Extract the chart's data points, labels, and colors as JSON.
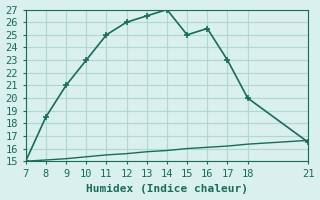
{
  "upper_x": [
    7,
    8,
    9,
    10,
    11,
    12,
    13,
    14,
    15,
    16,
    17,
    18,
    21
  ],
  "upper_y": [
    15.0,
    18.5,
    21.0,
    23.0,
    25.0,
    26.0,
    26.5,
    27.0,
    25.0,
    25.5,
    23.0,
    20.0,
    16.5
  ],
  "lower_x": [
    7,
    8,
    9,
    10,
    11,
    12,
    13,
    14,
    15,
    16,
    17,
    18,
    19,
    20,
    21
  ],
  "lower_y": [
    15.0,
    15.1,
    15.2,
    15.35,
    15.5,
    15.6,
    15.75,
    15.85,
    16.0,
    16.1,
    16.2,
    16.35,
    16.45,
    16.55,
    16.65
  ],
  "line_color": "#1a6b5a",
  "bg_color": "#d9f0ec",
  "grid_color": "#b0d8d0",
  "xlabel": "Humidex (Indice chaleur)",
  "xlim": [
    7,
    21
  ],
  "ylim": [
    15,
    27
  ],
  "xticks": [
    7,
    8,
    9,
    10,
    11,
    12,
    13,
    14,
    15,
    16,
    17,
    18,
    21
  ],
  "yticks": [
    15,
    16,
    17,
    18,
    19,
    20,
    21,
    22,
    23,
    24,
    25,
    26,
    27
  ],
  "tick_label_color": "#1a6b5a",
  "font_size": 7.5
}
